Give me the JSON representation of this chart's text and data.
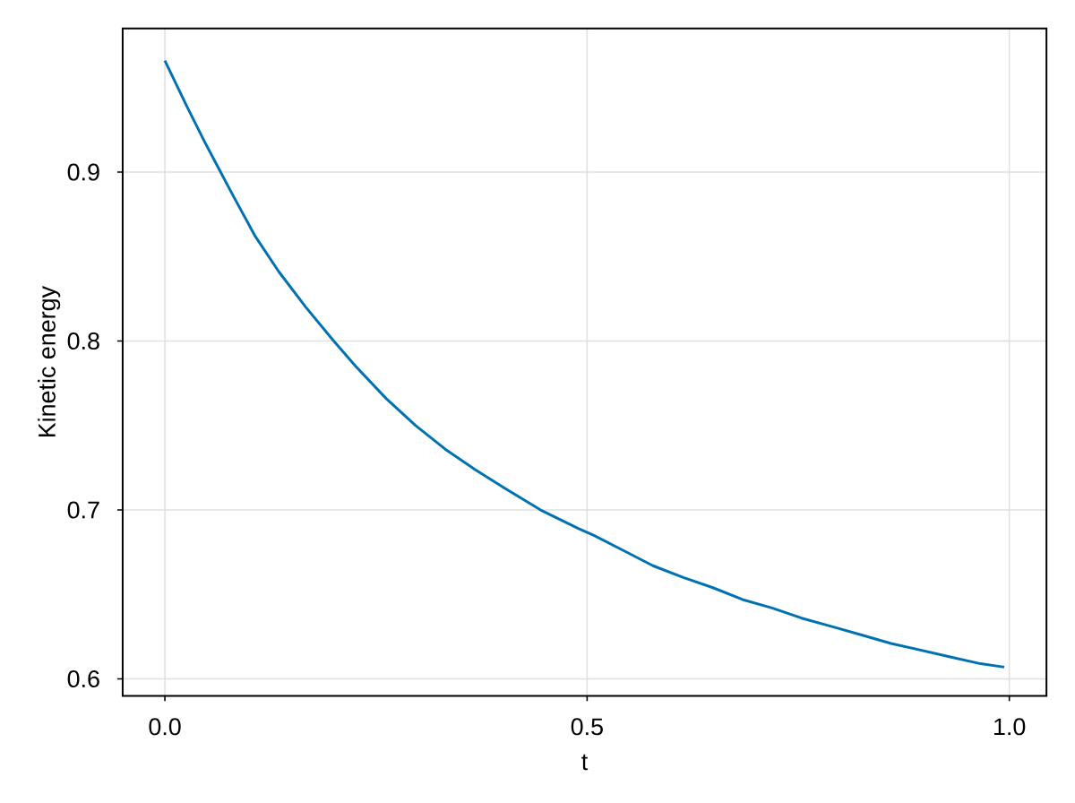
{
  "chart_data": {
    "type": "line",
    "xlabel": "t",
    "ylabel": "Kinetic energy",
    "x": [
      0,
      0.026,
      0.047,
      0.066,
      0.082,
      0.107,
      0.135,
      0.167,
      0.2,
      0.226,
      0.262,
      0.297,
      0.332,
      0.367,
      0.402,
      0.445,
      0.49,
      0.508,
      0.543,
      0.578,
      0.614,
      0.649,
      0.684,
      0.719,
      0.754,
      0.79,
      0.825,
      0.86,
      0.895,
      0.93,
      0.966,
      0.994
    ],
    "values": [
      0.966,
      0.939,
      0.918,
      0.9,
      0.885,
      0.862,
      0.841,
      0.82,
      0.8,
      0.785,
      0.766,
      0.75,
      0.736,
      0.724,
      0.713,
      0.7,
      0.689,
      0.685,
      0.676,
      0.667,
      0.66,
      0.654,
      0.647,
      0.642,
      0.636,
      0.631,
      0.626,
      0.621,
      0.617,
      0.613,
      0.609,
      0.607
    ],
    "color": "#0072b2",
    "xlim": [
      -0.05,
      1.044
    ],
    "ylim": [
      0.59,
      0.985
    ],
    "xticks": [
      {
        "value": 0,
        "label": "0.0"
      },
      0.5,
      {
        "value": 1,
        "label": "1.0"
      }
    ],
    "yticks": [
      0.6,
      0.7,
      0.8,
      0.9
    ],
    "grid": true
  }
}
